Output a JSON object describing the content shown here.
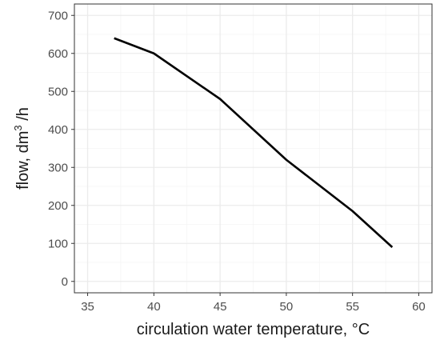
{
  "chart_data": {
    "type": "line",
    "title": "",
    "xlabel": "circulation water temperature, °C",
    "ylabel": {
      "prefix": "flow, dm",
      "superscript": "3",
      "suffix": " /h"
    },
    "x": [
      37,
      40,
      45,
      50,
      55,
      58
    ],
    "y": [
      640,
      600,
      480,
      320,
      185,
      90
    ],
    "xlim": [
      34,
      61
    ],
    "ylim": [
      -30,
      730
    ],
    "xticks": [
      35,
      40,
      45,
      50,
      55,
      60
    ],
    "yticks": [
      0,
      100,
      200,
      300,
      400,
      500,
      600,
      700
    ],
    "grid": true,
    "line_color": "#000000",
    "panel_border_color": "#333333",
    "grid_major_color": "#ebebeb",
    "grid_minor_color": "#f5f5f5"
  }
}
